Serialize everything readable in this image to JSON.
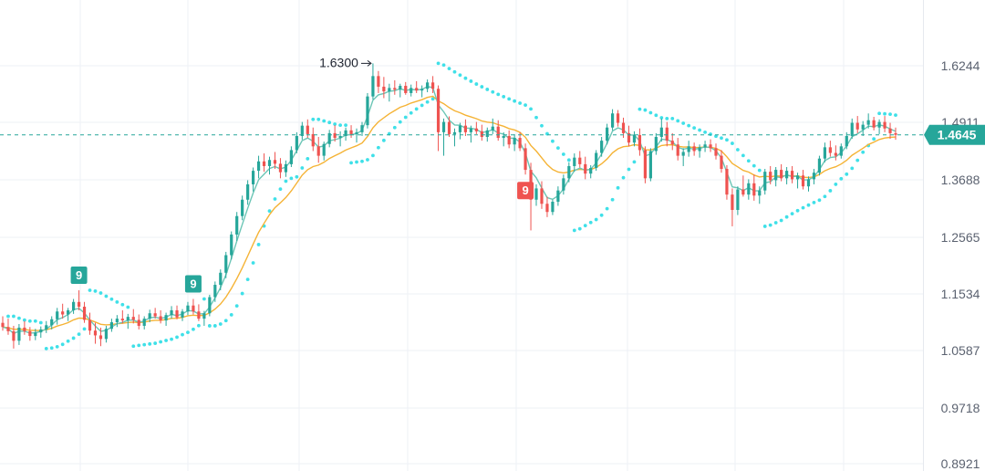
{
  "chart_data": {
    "type": "candlestick",
    "y_axis": {
      "ticks": [
        "1.6244",
        "1.4911",
        "1.3688",
        "1.2565",
        "1.1534",
        "1.0587",
        "0.9718",
        "0.8921"
      ],
      "position": "right"
    },
    "current_price": "1.4645",
    "high_annotation": "1.6300",
    "markers": [
      {
        "label": "9",
        "type": "buy",
        "candle": 14
      },
      {
        "label": "9",
        "type": "buy",
        "candle": 35
      },
      {
        "label": "9",
        "type": "sell",
        "candle": 96
      }
    ],
    "colors": {
      "up": "#26a69a",
      "down": "#ef5350",
      "ma_fast": "#6cc6b6",
      "ma_slow": "#f5b335",
      "psar": "#3fe0e8",
      "price_line": "#26a69a",
      "sell_marker": "#ef5350"
    },
    "grid": true,
    "candles": [
      [
        1.105,
        1.116,
        1.092,
        1.098
      ],
      [
        1.098,
        1.112,
        1.085,
        1.091
      ],
      [
        1.091,
        1.1,
        1.062,
        1.075
      ],
      [
        1.075,
        1.103,
        1.068,
        1.097
      ],
      [
        1.097,
        1.108,
        1.085,
        1.091
      ],
      [
        1.091,
        1.098,
        1.075,
        1.083
      ],
      [
        1.083,
        1.095,
        1.076,
        1.089
      ],
      [
        1.089,
        1.099,
        1.08,
        1.094
      ],
      [
        1.094,
        1.108,
        1.088,
        1.101
      ],
      [
        1.101,
        1.116,
        1.094,
        1.111
      ],
      [
        1.111,
        1.13,
        1.102,
        1.124
      ],
      [
        1.124,
        1.137,
        1.112,
        1.119
      ],
      [
        1.119,
        1.13,
        1.108,
        1.126
      ],
      [
        1.126,
        1.145,
        1.12,
        1.14
      ],
      [
        1.14,
        1.16,
        1.126,
        1.132
      ],
      [
        1.132,
        1.14,
        1.105,
        1.11
      ],
      [
        1.11,
        1.122,
        1.085,
        1.092
      ],
      [
        1.092,
        1.105,
        1.07,
        1.084
      ],
      [
        1.084,
        1.097,
        1.066,
        1.078
      ],
      [
        1.078,
        1.1,
        1.072,
        1.095
      ],
      [
        1.095,
        1.112,
        1.09,
        1.106
      ],
      [
        1.106,
        1.118,
        1.098,
        1.112
      ],
      [
        1.112,
        1.126,
        1.104,
        1.109
      ],
      [
        1.109,
        1.12,
        1.095,
        1.115
      ],
      [
        1.115,
        1.128,
        1.104,
        1.11
      ],
      [
        1.11,
        1.119,
        1.094,
        1.1
      ],
      [
        1.1,
        1.116,
        1.094,
        1.112
      ],
      [
        1.112,
        1.127,
        1.106,
        1.121
      ],
      [
        1.121,
        1.13,
        1.112,
        1.116
      ],
      [
        1.116,
        1.126,
        1.104,
        1.109
      ],
      [
        1.109,
        1.122,
        1.1,
        1.118
      ],
      [
        1.118,
        1.133,
        1.112,
        1.126
      ],
      [
        1.126,
        1.134,
        1.111,
        1.114
      ],
      [
        1.114,
        1.128,
        1.108,
        1.124
      ],
      [
        1.124,
        1.14,
        1.118,
        1.134
      ],
      [
        1.134,
        1.145,
        1.119,
        1.124
      ],
      [
        1.124,
        1.136,
        1.108,
        1.112
      ],
      [
        1.112,
        1.125,
        1.1,
        1.121
      ],
      [
        1.121,
        1.152,
        1.116,
        1.148
      ],
      [
        1.148,
        1.176,
        1.14,
        1.17
      ],
      [
        1.17,
        1.198,
        1.16,
        1.192
      ],
      [
        1.192,
        1.23,
        1.182,
        1.224
      ],
      [
        1.224,
        1.268,
        1.216,
        1.262
      ],
      [
        1.262,
        1.306,
        1.25,
        1.298
      ],
      [
        1.298,
        1.338,
        1.29,
        1.33
      ],
      [
        1.33,
        1.368,
        1.32,
        1.36
      ],
      [
        1.36,
        1.395,
        1.346,
        1.388
      ],
      [
        1.388,
        1.42,
        1.372,
        1.408
      ],
      [
        1.408,
        1.425,
        1.386,
        1.398
      ],
      [
        1.398,
        1.418,
        1.38,
        1.411
      ],
      [
        1.411,
        1.428,
        1.392,
        1.403
      ],
      [
        1.403,
        1.415,
        1.372,
        1.385
      ],
      [
        1.385,
        1.41,
        1.375,
        1.402
      ],
      [
        1.402,
        1.44,
        1.396,
        1.432
      ],
      [
        1.432,
        1.47,
        1.425,
        1.462
      ],
      [
        1.462,
        1.492,
        1.454,
        1.484
      ],
      [
        1.484,
        1.498,
        1.458,
        1.466
      ],
      [
        1.466,
        1.48,
        1.43,
        1.44
      ],
      [
        1.44,
        1.46,
        1.405,
        1.42
      ],
      [
        1.42,
        1.45,
        1.41,
        1.445
      ],
      [
        1.445,
        1.475,
        1.438,
        1.468
      ],
      [
        1.468,
        1.485,
        1.45,
        1.458
      ],
      [
        1.458,
        1.472,
        1.44,
        1.462
      ],
      [
        1.462,
        1.48,
        1.452,
        1.474
      ],
      [
        1.474,
        1.485,
        1.458,
        1.466
      ],
      [
        1.466,
        1.478,
        1.448,
        1.47
      ],
      [
        1.47,
        1.492,
        1.462,
        1.485
      ],
      [
        1.485,
        1.56,
        1.478,
        1.552
      ],
      [
        1.552,
        1.63,
        1.545,
        1.6
      ],
      [
        1.6,
        1.612,
        1.56,
        1.575
      ],
      [
        1.575,
        1.598,
        1.548,
        1.564
      ],
      [
        1.564,
        1.582,
        1.54,
        1.572
      ],
      [
        1.572,
        1.59,
        1.556,
        1.568
      ],
      [
        1.568,
        1.582,
        1.55,
        1.577
      ],
      [
        1.577,
        1.586,
        1.556,
        1.56
      ],
      [
        1.56,
        1.58,
        1.552,
        1.572
      ],
      [
        1.572,
        1.588,
        1.56,
        1.566
      ],
      [
        1.566,
        1.578,
        1.55,
        1.57
      ],
      [
        1.57,
        1.592,
        1.562,
        1.585
      ],
      [
        1.585,
        1.6,
        1.56,
        1.57
      ],
      [
        1.57,
        1.578,
        1.43,
        1.47
      ],
      [
        1.47,
        1.5,
        1.42,
        1.492
      ],
      [
        1.492,
        1.505,
        1.46,
        1.466
      ],
      [
        1.466,
        1.478,
        1.44,
        1.47
      ],
      [
        1.47,
        1.49,
        1.455,
        1.484
      ],
      [
        1.484,
        1.498,
        1.462,
        1.47
      ],
      [
        1.47,
        1.484,
        1.448,
        1.478
      ],
      [
        1.478,
        1.492,
        1.466,
        1.472
      ],
      [
        1.472,
        1.486,
        1.452,
        1.46
      ],
      [
        1.46,
        1.48,
        1.45,
        1.474
      ],
      [
        1.474,
        1.5,
        1.466,
        1.482
      ],
      [
        1.482,
        1.496,
        1.452,
        1.458
      ],
      [
        1.458,
        1.47,
        1.44,
        1.462
      ],
      [
        1.462,
        1.474,
        1.436,
        1.444
      ],
      [
        1.444,
        1.466,
        1.43,
        1.458
      ],
      [
        1.458,
        1.47,
        1.43,
        1.436
      ],
      [
        1.436,
        1.446,
        1.38,
        1.39
      ],
      [
        1.39,
        1.405,
        1.27,
        1.33
      ],
      [
        1.33,
        1.36,
        1.318,
        1.352
      ],
      [
        1.352,
        1.366,
        1.312,
        1.322
      ],
      [
        1.322,
        1.336,
        1.296,
        1.306
      ],
      [
        1.306,
        1.33,
        1.3,
        1.326
      ],
      [
        1.326,
        1.356,
        1.318,
        1.348
      ],
      [
        1.348,
        1.38,
        1.34,
        1.372
      ],
      [
        1.372,
        1.406,
        1.364,
        1.398
      ],
      [
        1.398,
        1.425,
        1.386,
        1.416
      ],
      [
        1.416,
        1.43,
        1.395,
        1.402
      ],
      [
        1.402,
        1.418,
        1.37,
        1.382
      ],
      [
        1.382,
        1.4,
        1.372,
        1.394
      ],
      [
        1.394,
        1.432,
        1.388,
        1.426
      ],
      [
        1.426,
        1.46,
        1.418,
        1.452
      ],
      [
        1.452,
        1.488,
        1.444,
        1.48
      ],
      [
        1.48,
        1.522,
        1.474,
        1.512
      ],
      [
        1.512,
        1.52,
        1.482,
        1.49
      ],
      [
        1.49,
        1.502,
        1.458,
        1.468
      ],
      [
        1.468,
        1.484,
        1.44,
        1.448
      ],
      [
        1.448,
        1.472,
        1.44,
        1.464
      ],
      [
        1.464,
        1.478,
        1.42,
        1.432
      ],
      [
        1.432,
        1.44,
        1.362,
        1.372
      ],
      [
        1.372,
        1.436,
        1.366,
        1.43
      ],
      [
        1.43,
        1.468,
        1.422,
        1.46
      ],
      [
        1.46,
        1.5,
        1.45,
        1.48
      ],
      [
        1.48,
        1.492,
        1.44,
        1.452
      ],
      [
        1.452,
        1.468,
        1.432,
        1.444
      ],
      [
        1.444,
        1.458,
        1.41,
        1.42
      ],
      [
        1.42,
        1.436,
        1.398,
        1.428
      ],
      [
        1.428,
        1.452,
        1.418,
        1.44
      ],
      [
        1.44,
        1.448,
        1.42,
        1.43
      ],
      [
        1.43,
        1.444,
        1.416,
        1.438
      ],
      [
        1.438,
        1.452,
        1.428,
        1.444
      ],
      [
        1.444,
        1.455,
        1.428,
        1.436
      ],
      [
        1.436,
        1.446,
        1.412,
        1.42
      ],
      [
        1.42,
        1.432,
        1.384,
        1.392
      ],
      [
        1.392,
        1.4,
        1.33,
        1.34
      ],
      [
        1.34,
        1.352,
        1.278,
        1.31
      ],
      [
        1.31,
        1.356,
        1.3,
        1.35
      ],
      [
        1.35,
        1.378,
        1.336,
        1.34
      ],
      [
        1.34,
        1.37,
        1.33,
        1.362
      ],
      [
        1.362,
        1.38,
        1.328,
        1.338
      ],
      [
        1.338,
        1.356,
        1.322,
        1.348
      ],
      [
        1.348,
        1.392,
        1.34,
        1.386
      ],
      [
        1.386,
        1.398,
        1.36,
        1.368
      ],
      [
        1.368,
        1.396,
        1.356,
        1.39
      ],
      [
        1.39,
        1.402,
        1.366,
        1.372
      ],
      [
        1.372,
        1.396,
        1.36,
        1.388
      ],
      [
        1.388,
        1.398,
        1.362,
        1.37
      ],
      [
        1.37,
        1.384,
        1.352,
        1.378
      ],
      [
        1.378,
        1.39,
        1.35,
        1.356
      ],
      [
        1.356,
        1.376,
        1.346,
        1.37
      ],
      [
        1.37,
        1.392,
        1.36,
        1.384
      ],
      [
        1.384,
        1.42,
        1.378,
        1.414
      ],
      [
        1.414,
        1.448,
        1.406,
        1.438
      ],
      [
        1.438,
        1.452,
        1.418,
        1.426
      ],
      [
        1.426,
        1.442,
        1.41,
        1.42
      ],
      [
        1.42,
        1.446,
        1.414,
        1.44
      ],
      [
        1.44,
        1.47,
        1.434,
        1.462
      ],
      [
        1.462,
        1.5,
        1.456,
        1.49
      ],
      [
        1.49,
        1.506,
        1.468,
        1.476
      ],
      [
        1.476,
        1.494,
        1.462,
        1.486
      ],
      [
        1.486,
        1.512,
        1.478,
        1.496
      ],
      [
        1.496,
        1.504,
        1.474,
        1.48
      ],
      [
        1.48,
        1.498,
        1.466,
        1.492
      ],
      [
        1.492,
        1.506,
        1.47,
        1.478
      ],
      [
        1.478,
        1.49,
        1.456,
        1.468
      ],
      [
        1.468,
        1.48,
        1.454,
        1.4645
      ]
    ]
  }
}
